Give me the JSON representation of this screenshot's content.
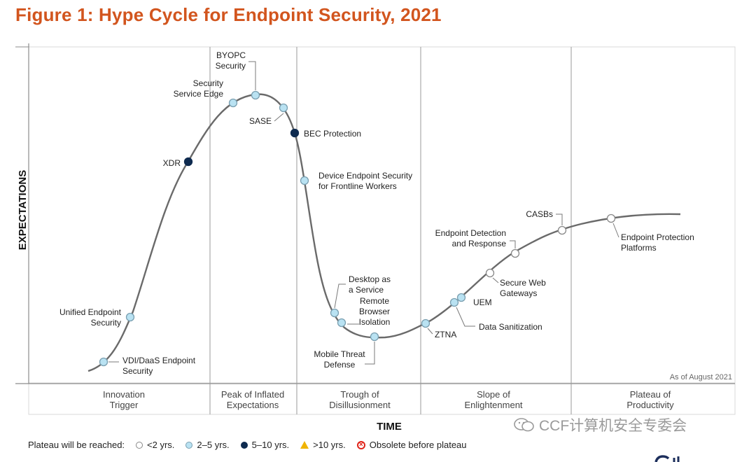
{
  "figure_title": "Figure 1: Hype Cycle for Endpoint Security, 2021",
  "chart_data": {
    "type": "line",
    "title": "Figure 1: Hype Cycle for Endpoint Security, 2021",
    "xlabel": "TIME",
    "ylabel": "EXPECTATIONS",
    "as_of": "As of August 2021",
    "phases": [
      {
        "name": "Innovation Trigger",
        "lines": [
          "Innovation",
          "Trigger"
        ]
      },
      {
        "name": "Peak of Inflated Expectations",
        "lines": [
          "Peak of Inflated",
          "Expectations"
        ]
      },
      {
        "name": "Trough of Disillusionment",
        "lines": [
          "Trough of",
          "Disillusionment"
        ]
      },
      {
        "name": "Slope of Enlightenment",
        "lines": [
          "Slope of",
          "Enlightenment"
        ]
      },
      {
        "name": "Plateau of Productivity",
        "lines": [
          "Plateau of",
          "Productivity"
        ]
      }
    ],
    "technologies": [
      {
        "name": "VDI/DaaS Endpoint Security",
        "lines": [
          "VDI/DaaS Endpoint",
          "Security"
        ],
        "phase": "Innovation Trigger",
        "plateau": "2-5 yrs"
      },
      {
        "name": "Unified Endpoint Security",
        "lines": [
          "Unified Endpoint",
          "Security"
        ],
        "phase": "Innovation Trigger",
        "plateau": "2-5 yrs"
      },
      {
        "name": "XDR",
        "lines": [
          "XDR"
        ],
        "phase": "Innovation Trigger",
        "plateau": "5-10 yrs"
      },
      {
        "name": "Security Service Edge",
        "lines": [
          "Security",
          "Service Edge"
        ],
        "phase": "Peak of Inflated Expectations",
        "plateau": "2-5 yrs"
      },
      {
        "name": "BYOPC Security",
        "lines": [
          "BYOPC",
          "Security"
        ],
        "phase": "Peak of Inflated Expectations",
        "plateau": "2-5 yrs"
      },
      {
        "name": "SASE",
        "lines": [
          "SASE"
        ],
        "phase": "Peak of Inflated Expectations",
        "plateau": "2-5 yrs"
      },
      {
        "name": "BEC Protection",
        "lines": [
          "BEC Protection"
        ],
        "phase": "Trough of Disillusionment",
        "plateau": "5-10 yrs"
      },
      {
        "name": "Device Endpoint Security for Frontline Workers",
        "lines": [
          "Device Endpoint Security",
          "for Frontline Workers"
        ],
        "phase": "Trough of Disillusionment",
        "plateau": "2-5 yrs"
      },
      {
        "name": "Desktop as a Service",
        "lines": [
          "Desktop as",
          "a Service"
        ],
        "phase": "Trough of Disillusionment",
        "plateau": "2-5 yrs"
      },
      {
        "name": "Remote Browser Isolation",
        "lines": [
          "Remote",
          "Browser",
          "Isolation"
        ],
        "phase": "Trough of Disillusionment",
        "plateau": "2-5 yrs"
      },
      {
        "name": "Mobile Threat Defense",
        "lines": [
          "Mobile Threat",
          "Defense"
        ],
        "phase": "Trough of Disillusionment",
        "plateau": "2-5 yrs"
      },
      {
        "name": "ZTNA",
        "lines": [
          "ZTNA"
        ],
        "phase": "Slope of Enlightenment",
        "plateau": "2-5 yrs"
      },
      {
        "name": "Data Sanitization",
        "lines": [
          "Data Sanitization"
        ],
        "phase": "Slope of Enlightenment",
        "plateau": "2-5 yrs"
      },
      {
        "name": "UEM",
        "lines": [
          "UEM"
        ],
        "phase": "Slope of Enlightenment",
        "plateau": "2-5 yrs"
      },
      {
        "name": "Secure Web Gateways",
        "lines": [
          "Secure Web",
          "Gateways"
        ],
        "phase": "Slope of Enlightenment",
        "plateau": "<2 yrs"
      },
      {
        "name": "Endpoint Detection and Response",
        "lines": [
          "Endpoint Detection",
          "and Response"
        ],
        "phase": "Slope of Enlightenment",
        "plateau": "<2 yrs"
      },
      {
        "name": "CASBs",
        "lines": [
          "CASBs"
        ],
        "phase": "Slope of Enlightenment",
        "plateau": "<2 yrs"
      },
      {
        "name": "Endpoint Protection Platforms",
        "lines": [
          "Endpoint Protection",
          "Platforms"
        ],
        "phase": "Plateau of Productivity",
        "plateau": "<2 yrs"
      }
    ]
  },
  "legend": {
    "title": "Plateau will be reached:",
    "items": [
      {
        "key": "<2 yrs",
        "label": "<2 yrs.",
        "fill": "#ffffff",
        "stroke": "#888888"
      },
      {
        "key": "2-5 yrs",
        "label": "2–5 yrs.",
        "fill": "#b9e2f2",
        "stroke": "#7a9fb0"
      },
      {
        "key": "5-10 yrs",
        "label": "5–10 yrs.",
        "fill": "#0e2a4f",
        "stroke": "#0e2a4f"
      },
      {
        "key": ">10 yrs",
        "label": ">10 yrs.",
        "fill": "#f0b400",
        "stroke": "#f0b400"
      },
      {
        "key": "obsolete",
        "label": "Obsolete before plateau",
        "fill": "#ffffff",
        "stroke": "#e0251b"
      }
    ]
  },
  "watermark": "CCF计算机安全专委会"
}
